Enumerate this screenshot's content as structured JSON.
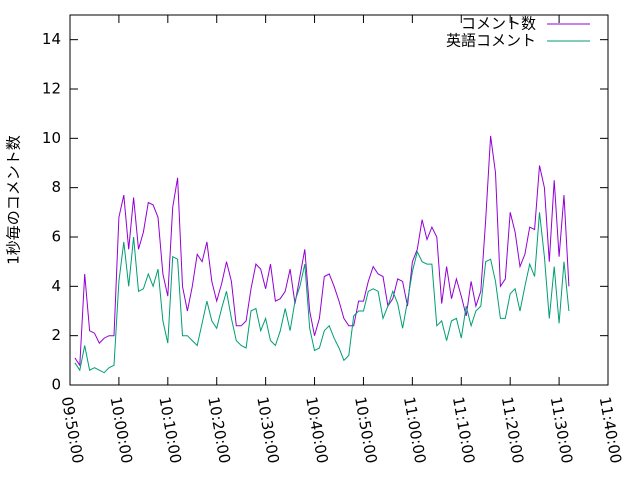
{
  "chart_data": {
    "type": "line",
    "ylabel": "1秒毎のコメント数",
    "ylim": [
      0,
      15
    ],
    "yticks": [
      0,
      2,
      4,
      6,
      8,
      10,
      12,
      14
    ],
    "xlim": [
      "09:50:00",
      "11:40:00"
    ],
    "xticks": [
      "09:50:00",
      "10:00:00",
      "10:10:00",
      "10:20:00",
      "10:30:00",
      "10:40:00",
      "10:50:00",
      "11:00:00",
      "11:10:00",
      "11:20:00",
      "11:30:00",
      "11:40:00"
    ],
    "legend": "upper right",
    "x": [
      "09:51:00",
      "09:52:00",
      "09:53:00",
      "09:54:00",
      "09:55:00",
      "09:56:00",
      "09:57:00",
      "09:58:00",
      "09:59:00",
      "10:00:00",
      "10:01:00",
      "10:02:00",
      "10:03:00",
      "10:04:00",
      "10:05:00",
      "10:06:00",
      "10:07:00",
      "10:08:00",
      "10:09:00",
      "10:10:00",
      "10:11:00",
      "10:12:00",
      "10:13:00",
      "10:14:00",
      "10:15:00",
      "10:16:00",
      "10:17:00",
      "10:18:00",
      "10:19:00",
      "10:20:00",
      "10:21:00",
      "10:22:00",
      "10:23:00",
      "10:24:00",
      "10:25:00",
      "10:26:00",
      "10:27:00",
      "10:28:00",
      "10:29:00",
      "10:30:00",
      "10:31:00",
      "10:32:00",
      "10:33:00",
      "10:34:00",
      "10:35:00",
      "10:36:00",
      "10:37:00",
      "10:38:00",
      "10:39:00",
      "10:40:00",
      "10:41:00",
      "10:42:00",
      "10:43:00",
      "10:44:00",
      "10:45:00",
      "10:46:00",
      "10:47:00",
      "10:48:00",
      "10:49:00",
      "10:50:00",
      "10:51:00",
      "10:52:00",
      "10:53:00",
      "10:54:00",
      "10:55:00",
      "10:56:00",
      "10:57:00",
      "10:58:00",
      "10:59:00",
      "11:00:00",
      "11:01:00",
      "11:02:00",
      "11:03:00",
      "11:04:00",
      "11:05:00",
      "11:06:00",
      "11:07:00",
      "11:08:00",
      "11:09:00",
      "11:10:00",
      "11:11:00",
      "11:12:00",
      "11:13:00",
      "11:14:00",
      "11:15:00",
      "11:16:00",
      "11:17:00",
      "11:18:00",
      "11:19:00",
      "11:20:00",
      "11:21:00",
      "11:22:00",
      "11:23:00",
      "11:24:00",
      "11:25:00",
      "11:26:00",
      "11:27:00",
      "11:28:00",
      "11:29:00",
      "11:30:00",
      "11:31:00",
      "11:32:00"
    ],
    "series": [
      {
        "name": "コメント数",
        "color": "#9400d3",
        "values": [
          1.1,
          0.8,
          4.5,
          2.2,
          2.1,
          1.7,
          1.9,
          2.0,
          2.0,
          6.8,
          7.7,
          5.5,
          7.6,
          5.5,
          6.2,
          7.4,
          7.3,
          6.8,
          4.5,
          3.6,
          7.2,
          8.4,
          4.0,
          3.0,
          4.0,
          5.3,
          5.0,
          5.8,
          4.2,
          3.4,
          4.1,
          5.0,
          4.2,
          2.4,
          2.4,
          2.6,
          3.9,
          4.9,
          4.7,
          3.9,
          4.9,
          3.4,
          3.5,
          3.8,
          4.7,
          3.3,
          4.4,
          5.5,
          3.0,
          2.0,
          2.7,
          4.4,
          4.5,
          4.0,
          3.4,
          2.7,
          2.4,
          2.4,
          3.4,
          3.4,
          4.2,
          4.8,
          4.5,
          4.4,
          3.2,
          3.5,
          4.3,
          4.2,
          3.2,
          5.0,
          5.5,
          6.7,
          5.9,
          6.4,
          6.0,
          3.3,
          4.8,
          3.5,
          4.3,
          3.6,
          2.8,
          4.2,
          3.2,
          3.8,
          6.7,
          10.1,
          8.6,
          4.0,
          4.3,
          7.0,
          6.2,
          4.8,
          5.3,
          6.4,
          6.3,
          8.9,
          8.0,
          5.0,
          8.3,
          5.2,
          7.7,
          4.0
        ]
      },
      {
        "name": "英語コメント",
        "color": "#009e73",
        "values": [
          0.9,
          0.6,
          1.6,
          0.6,
          0.7,
          0.6,
          0.5,
          0.7,
          0.8,
          4.2,
          5.8,
          4.0,
          6.0,
          3.8,
          3.9,
          4.5,
          4.0,
          4.7,
          2.6,
          1.7,
          5.2,
          5.1,
          2.0,
          2.0,
          1.8,
          1.6,
          2.5,
          3.4,
          2.6,
          2.3,
          3.1,
          3.8,
          2.7,
          1.8,
          1.6,
          1.5,
          3.0,
          3.1,
          2.2,
          2.7,
          1.8,
          1.6,
          2.2,
          3.1,
          2.2,
          3.4,
          4.0,
          4.9,
          2.3,
          1.4,
          1.5,
          2.2,
          2.4,
          1.9,
          1.5,
          1.0,
          1.2,
          2.8,
          3.0,
          3.0,
          3.8,
          3.9,
          3.8,
          2.7,
          3.2,
          3.8,
          3.3,
          2.3,
          3.4,
          4.6,
          5.4,
          5.0,
          4.9,
          4.9,
          2.4,
          2.6,
          1.8,
          2.6,
          2.7,
          1.9,
          3.2,
          2.4,
          3.0,
          3.2,
          5.0,
          5.1,
          4.2,
          2.7,
          2.7,
          3.7,
          3.9,
          3.0,
          4.0,
          4.9,
          4.4,
          7.0,
          5.2,
          2.7,
          4.8,
          2.5,
          5.0,
          3.0
        ]
      }
    ]
  }
}
